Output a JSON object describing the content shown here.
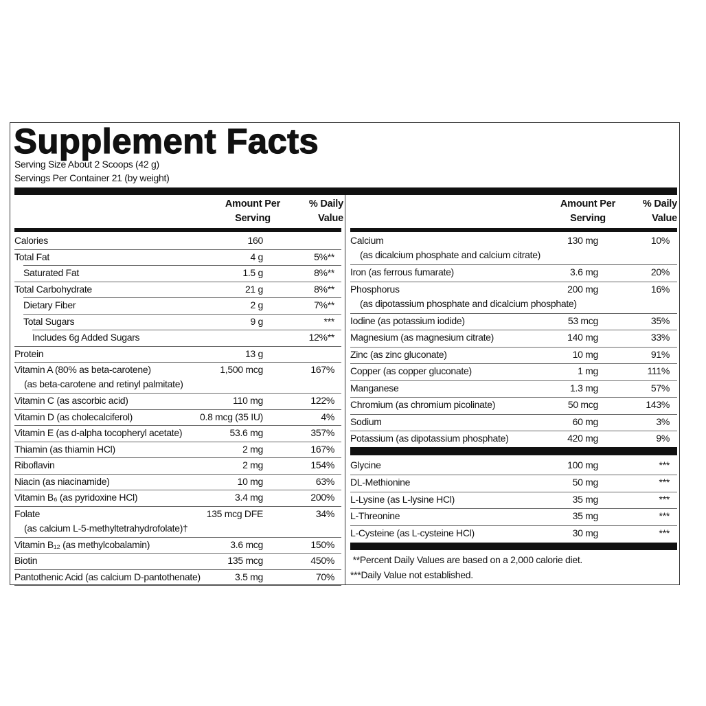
{
  "title": "Supplement Facts",
  "serving_size": "Serving Size About 2 Scoops (42 g)",
  "servings_per_container": "Servings Per Container 21 (by weight)",
  "headers": {
    "amount": "Amount Per Serving",
    "dv": "% Daily Value"
  },
  "left_rows": [
    {
      "label": "Calories",
      "amount": "160",
      "dv": ""
    },
    {
      "label": "Total Fat",
      "amount": "4 g",
      "dv": "5%**"
    },
    {
      "label": "Saturated Fat",
      "amount": "1.5 g",
      "dv": "8%**",
      "level": 1
    },
    {
      "label": "Total Carbohydrate",
      "amount": "21 g",
      "dv": "8%**"
    },
    {
      "label": "Dietary Fiber",
      "amount": "2 g",
      "dv": "7%**",
      "level": 1
    },
    {
      "label": "Total Sugars",
      "amount": "9 g",
      "dv": "***",
      "level": 1
    },
    {
      "label": "Includes 6g Added Sugars",
      "amount": "",
      "dv": "12%**",
      "level": 2
    },
    {
      "label": "Protein",
      "amount": "13 g",
      "dv": ""
    },
    {
      "label": "Vitamin A (80% as beta-carotene)",
      "sub": "(as beta-carotene and retinyl palmitate)",
      "amount": "1,500 mcg",
      "dv": "167%"
    },
    {
      "label": "Vitamin C (as ascorbic acid)",
      "amount": "110 mg",
      "dv": "122%"
    },
    {
      "label": "Vitamin D (as cholecalciferol)",
      "amount": "0.8 mcg (35 IU)",
      "dv": "4%"
    },
    {
      "label": "Vitamin E (as d-alpha tocopheryl acetate)",
      "amount": "53.6 mg",
      "dv": "357%"
    },
    {
      "label": "Thiamin (as thiamin HCl)",
      "amount": "2 mg",
      "dv": "167%"
    },
    {
      "label": "Riboflavin",
      "amount": "2 mg",
      "dv": "154%"
    },
    {
      "label": "Niacin (as niacinamide)",
      "amount": "10 mg",
      "dv": "63%"
    },
    {
      "label": "Vitamin B₆ (as pyridoxine HCl)",
      "amount": "3.4 mg",
      "dv": "200%"
    },
    {
      "label": "Folate",
      "sub": "(as calcium L-5-methyltetrahydrofolate)†",
      "amount": "135 mcg DFE",
      "dv": "34%"
    },
    {
      "label": "Vitamin B₁₂ (as methylcobalamin)",
      "amount": "3.6 mcg",
      "dv": "150%"
    },
    {
      "label": "Biotin",
      "amount": "135 mcg",
      "dv": "450%"
    },
    {
      "label": "Pantothenic Acid (as calcium D-pantothenate)",
      "amount": "3.5 mg",
      "dv": "70%"
    }
  ],
  "right_rows": [
    {
      "label": "Calcium",
      "sub": "(as dicalcium phosphate and calcium citrate)",
      "amount": "130 mg",
      "dv": "10%"
    },
    {
      "label": "Iron (as ferrous fumarate)",
      "amount": "3.6 mg",
      "dv": "20%"
    },
    {
      "label": "Phosphorus",
      "sub": "(as dipotassium phosphate and dicalcium phosphate)",
      "amount": "200 mg",
      "dv": "16%"
    },
    {
      "label": "Iodine (as potassium iodide)",
      "amount": "53 mcg",
      "dv": "35%"
    },
    {
      "label": "Magnesium (as magnesium citrate)",
      "amount": "140 mg",
      "dv": "33%"
    },
    {
      "label": "Zinc (as zinc gluconate)",
      "amount": "10 mg",
      "dv": "91%"
    },
    {
      "label": "Copper (as copper gluconate)",
      "amount": "1 mg",
      "dv": "111%"
    },
    {
      "label": "Manganese",
      "amount": "1.3 mg",
      "dv": "57%"
    },
    {
      "label": "Chromium (as chromium picolinate)",
      "amount": "50 mcg",
      "dv": "143%"
    },
    {
      "label": "Sodium",
      "amount": "60 mg",
      "dv": "3%"
    },
    {
      "label": "Potassium (as dipotassium phosphate)",
      "amount": "420 mg",
      "dv": "9%"
    }
  ],
  "other_rows": [
    {
      "label": "Glycine",
      "amount": "100 mg",
      "dv": "***"
    },
    {
      "label": "DL-Methionine",
      "amount": "50 mg",
      "dv": "***"
    },
    {
      "label": "L-Lysine (as L-lysine HCl)",
      "amount": "35 mg",
      "dv": "***"
    },
    {
      "label": "L-Threonine",
      "amount": "35 mg",
      "dv": "***"
    },
    {
      "label": "L-Cysteine (as L-cysteine HCl)",
      "amount": "30 mg",
      "dv": "***"
    }
  ],
  "footnotes": [
    " **Percent Daily Values are based on a 2,000 calorie diet.",
    "***Daily Value not established."
  ]
}
